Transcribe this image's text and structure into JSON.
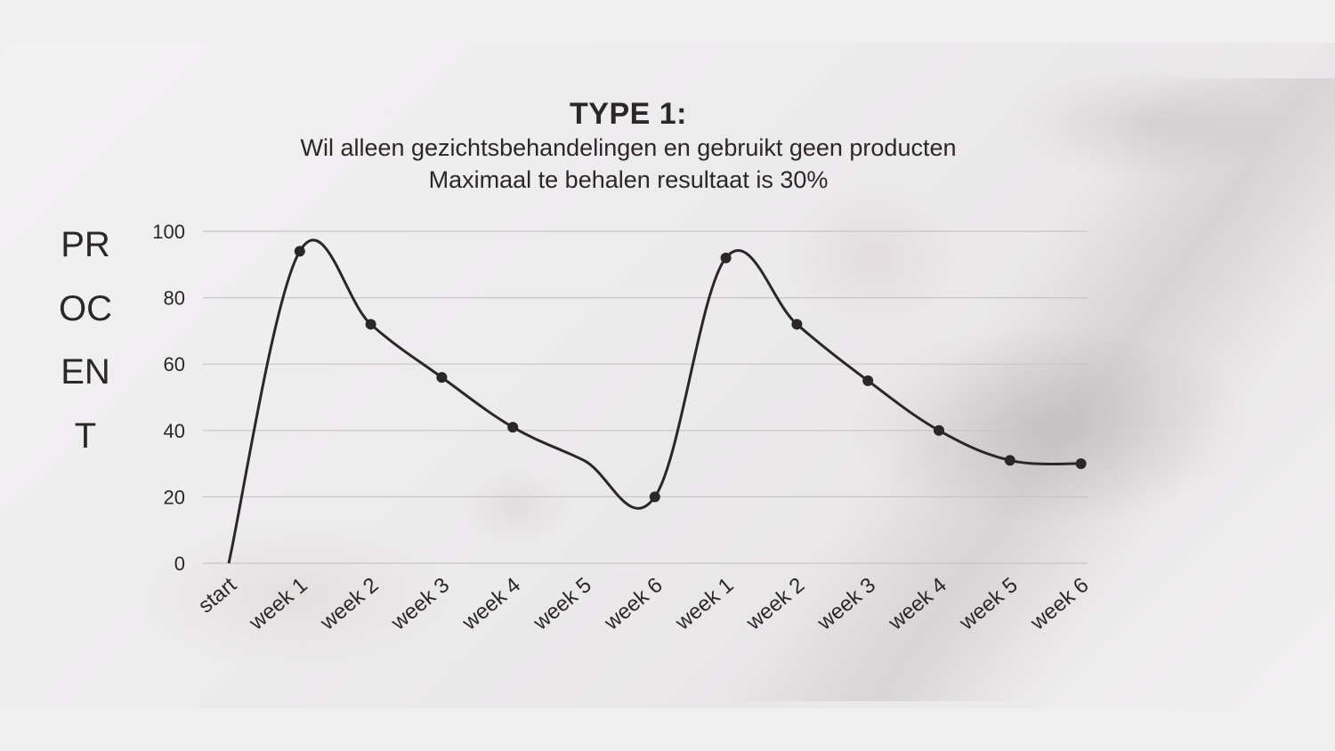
{
  "chart_data": {
    "type": "line",
    "title": "TYPE 1:",
    "subtitle": [
      "Wil alleen gezichtsbehandelingen en gebruikt geen producten",
      "Maximaal te behalen resultaat is 30%"
    ],
    "ylabel": "PROCENT",
    "xlabel": "",
    "categories": [
      "start",
      "week 1",
      "week 2",
      "week 3",
      "week 4",
      "week 5",
      "week 6",
      "week 1",
      "week 2",
      "week 3",
      "week 4",
      "week 5",
      "week 6"
    ],
    "series": [
      {
        "values": [
          0,
          94,
          72,
          56,
          41,
          31,
          20,
          92,
          72,
          55,
          40,
          31,
          30
        ],
        "markers": [
          false,
          true,
          true,
          true,
          true,
          false,
          true,
          true,
          true,
          true,
          true,
          true,
          true
        ]
      }
    ],
    "yticks": [
      0,
      20,
      40,
      60,
      80,
      100
    ],
    "ylim": [
      0,
      100
    ],
    "grid": true,
    "legend": "none",
    "colors": {
      "line": "#2b2627",
      "grid": "#c7c4c5",
      "text": "#2b2627"
    }
  }
}
